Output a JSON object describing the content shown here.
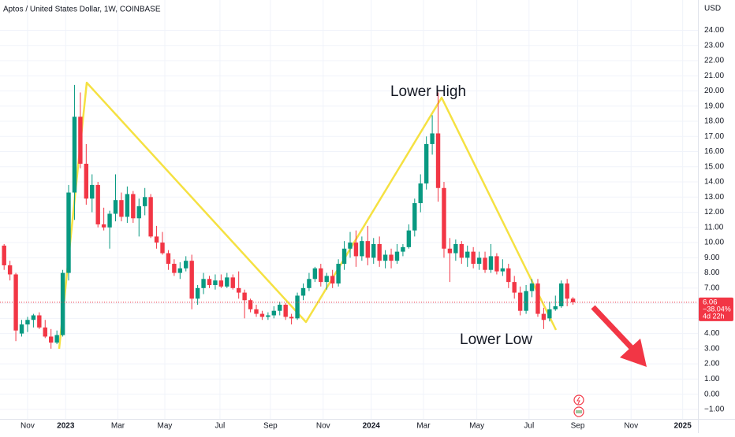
{
  "chart_data": {
    "type": "candlestick",
    "title": "Aptos / United States Dollar, 1W, COINBASE",
    "currency": "USD",
    "up_color": "#089981",
    "down_color": "#f23645",
    "grid": true,
    "ylim": [
      -1.63,
      26.0
    ],
    "yticks": [
      {
        "value": 24,
        "label": "24.00"
      },
      {
        "value": 23,
        "label": "23.00"
      },
      {
        "value": 22,
        "label": "22.00"
      },
      {
        "value": 21,
        "label": "21.00"
      },
      {
        "value": 20,
        "label": "20.00"
      },
      {
        "value": 19,
        "label": "19.00"
      },
      {
        "value": 18,
        "label": "18.00"
      },
      {
        "value": 17,
        "label": "17.00"
      },
      {
        "value": 16,
        "label": "16.00"
      },
      {
        "value": 15,
        "label": "15.00"
      },
      {
        "value": 14,
        "label": "14.00"
      },
      {
        "value": 13,
        "label": "13.00"
      },
      {
        "value": 12,
        "label": "12.00"
      },
      {
        "value": 11,
        "label": "11.00"
      },
      {
        "value": 10,
        "label": "10.00"
      },
      {
        "value": 9,
        "label": "9.00"
      },
      {
        "value": 8,
        "label": "8.00"
      },
      {
        "value": 7,
        "label": "7.00"
      },
      {
        "value": 6,
        "label": "6.00"
      },
      {
        "value": 5,
        "label": "5.00"
      },
      {
        "value": 4,
        "label": "4.00"
      },
      {
        "value": 3,
        "label": "3.00"
      },
      {
        "value": 2,
        "label": "2.00"
      },
      {
        "value": 1,
        "label": "1.00"
      },
      {
        "value": 0,
        "label": "0.00"
      },
      {
        "value": -1,
        "label": "−1.00"
      }
    ],
    "xlim": [
      -0.7,
      118.3
    ],
    "xticks": [
      {
        "value": 4.0,
        "label": "Nov"
      },
      {
        "value": 10.5,
        "label": "2023"
      },
      {
        "value": 19.4,
        "label": "Mar"
      },
      {
        "value": 27.4,
        "label": "May"
      },
      {
        "value": 36.8,
        "label": "Jul"
      },
      {
        "value": 45.4,
        "label": "Sep"
      },
      {
        "value": 54.4,
        "label": "Nov"
      },
      {
        "value": 62.6,
        "label": "2024"
      },
      {
        "value": 71.5,
        "label": "Mar"
      },
      {
        "value": 80.6,
        "label": "May"
      },
      {
        "value": 89.5,
        "label": "Jul"
      },
      {
        "value": 97.8,
        "label": "Sep"
      },
      {
        "value": 106.9,
        "label": "Nov"
      },
      {
        "value": 115.7,
        "label": "2025"
      }
    ],
    "open": [
      9.8,
      8.5,
      7.9,
      4.0,
      4.6,
      4.9,
      5.2,
      4.4,
      3.8,
      3.4,
      3.9,
      8.0,
      13.3,
      18.3,
      15.2,
      12.9,
      13.8,
      11.2,
      11.0,
      11.9,
      12.8,
      11.7,
      13.2,
      11.6,
      12.4,
      13.0,
      10.4,
      10.0,
      9.3,
      8.6,
      8.0,
      8.3,
      8.8,
      6.3,
      7.0,
      7.6,
      7.2,
      7.5,
      7.1,
      7.7,
      7.0,
      6.7,
      6.2,
      5.6,
      5.3,
      5.1,
      5.2,
      5.5,
      5.9,
      5.1,
      5.0,
      6.5,
      7.0,
      7.6,
      8.3,
      7.4,
      7.8,
      7.3,
      8.6,
      9.6,
      10.0,
      9.1,
      10.1,
      9.0,
      9.9,
      8.8,
      9.2,
      8.8,
      9.4,
      9.7,
      10.8,
      12.6,
      13.9,
      16.5,
      17.2,
      13.6,
      9.6,
      9.3,
      9.9,
      9.0,
      9.4,
      8.6,
      9.0,
      8.2,
      9.1,
      8.1,
      8.3,
      7.4,
      6.7,
      5.5,
      6.8,
      7.3,
      5.3,
      5.0,
      5.6,
      5.8,
      7.3,
      6.3
    ],
    "high": [
      9.9,
      8.8,
      8.0,
      4.9,
      5.1,
      5.3,
      5.4,
      4.9,
      4.3,
      4.2,
      8.2,
      13.8,
      20.4,
      19.9,
      16.5,
      14.5,
      14.0,
      12.3,
      12.1,
      14.5,
      13.3,
      13.7,
      13.4,
      12.9,
      13.6,
      13.2,
      11.1,
      10.7,
      9.5,
      8.9,
      8.7,
      9.1,
      9.2,
      7.2,
      8.0,
      7.8,
      7.9,
      7.9,
      8.0,
      7.9,
      8.1,
      6.9,
      6.3,
      5.9,
      5.5,
      5.4,
      5.8,
      6.1,
      6.0,
      5.3,
      6.7,
      7.3,
      8.0,
      8.4,
      8.6,
      8.0,
      8.2,
      8.9,
      10.1,
      10.7,
      10.8,
      10.4,
      11.1,
      10.3,
      10.4,
      9.5,
      9.6,
      9.9,
      9.9,
      11.2,
      12.9,
      14.5,
      17.0,
      18.4,
      19.9,
      14.0,
      10.3,
      10.2,
      10.1,
      9.8,
      9.7,
      9.4,
      9.4,
      9.9,
      9.3,
      8.9,
      8.6,
      7.8,
      7.1,
      7.2,
      7.6,
      7.6,
      5.7,
      6.1,
      6.5,
      7.5,
      7.6,
      6.4
    ],
    "low": [
      8.2,
      7.5,
      3.5,
      3.8,
      4.1,
      4.4,
      4.3,
      3.7,
      3.0,
      3.3,
      3.8,
      7.5,
      11.5,
      14.9,
      12.5,
      12.0,
      11.0,
      10.8,
      9.6,
      11.4,
      11.4,
      11.3,
      11.3,
      10.4,
      11.8,
      10.3,
      9.6,
      9.2,
      8.2,
      7.8,
      7.6,
      8.1,
      5.6,
      5.9,
      6.6,
      7.0,
      6.9,
      7.0,
      7.0,
      6.9,
      6.3,
      5.0,
      5.4,
      5.1,
      4.9,
      4.9,
      5.0,
      5.2,
      4.9,
      4.6,
      4.9,
      6.2,
      6.8,
      7.4,
      7.1,
      6.9,
      7.0,
      7.1,
      8.2,
      9.0,
      8.4,
      8.8,
      8.5,
      8.6,
      8.4,
      8.3,
      8.3,
      8.6,
      9.1,
      9.6,
      10.4,
      12.0,
      13.5,
      15.8,
      12.7,
      9.0,
      7.4,
      8.8,
      8.6,
      8.4,
      8.3,
      8.2,
      8.0,
      8.0,
      7.9,
      7.8,
      7.0,
      6.3,
      5.2,
      5.3,
      6.4,
      5.1,
      4.3,
      4.8,
      5.5,
      5.7,
      5.8,
      5.9
    ],
    "close": [
      8.5,
      7.9,
      4.2,
      4.6,
      4.9,
      5.2,
      4.4,
      3.8,
      3.4,
      3.9,
      8.0,
      13.3,
      18.3,
      15.2,
      12.9,
      13.8,
      11.2,
      11.0,
      11.9,
      12.8,
      11.7,
      13.2,
      11.6,
      12.4,
      13.0,
      10.4,
      10.0,
      9.3,
      8.6,
      8.0,
      8.3,
      8.8,
      6.3,
      7.0,
      7.6,
      7.2,
      7.5,
      7.1,
      7.7,
      7.0,
      6.7,
      6.2,
      5.6,
      5.3,
      5.1,
      5.2,
      5.5,
      5.9,
      5.1,
      5.0,
      6.5,
      7.0,
      7.6,
      8.3,
      7.4,
      7.8,
      7.3,
      8.6,
      9.6,
      10.0,
      9.1,
      10.1,
      9.0,
      9.9,
      8.8,
      9.2,
      8.8,
      9.4,
      9.7,
      10.8,
      12.6,
      13.9,
      16.5,
      17.2,
      13.6,
      9.6,
      9.3,
      9.9,
      9.0,
      9.4,
      8.6,
      9.0,
      8.2,
      9.1,
      8.1,
      8.3,
      7.4,
      6.7,
      5.5,
      6.8,
      7.3,
      5.3,
      4.9,
      5.6,
      5.8,
      7.3,
      6.3,
      6.06
    ],
    "last_price": 6.06,
    "change_label": "−38.04%",
    "countdown": "4d 22h",
    "annotations": [
      "Lower High",
      "Lower Low"
    ]
  }
}
